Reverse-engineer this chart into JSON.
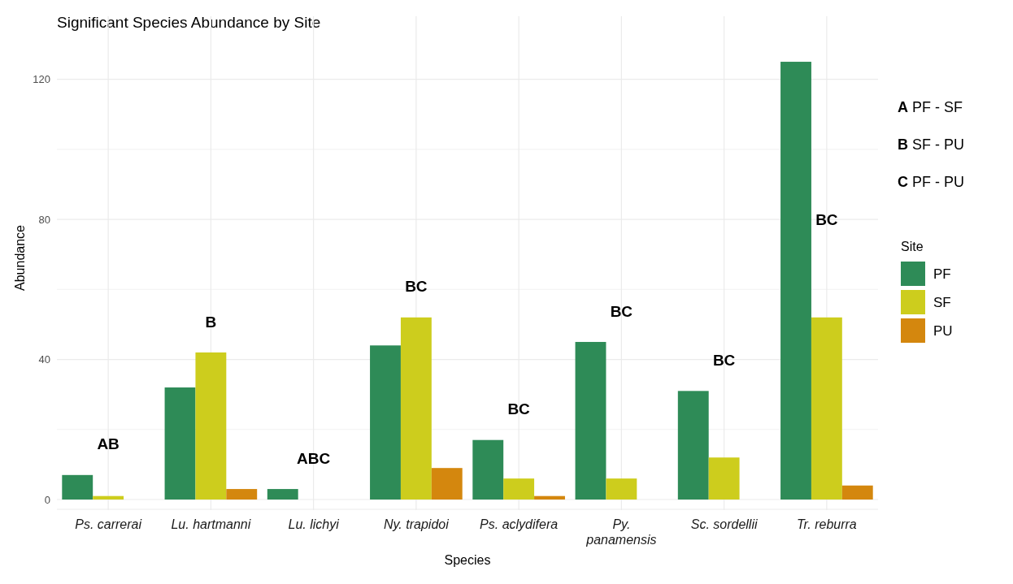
{
  "chart_data": {
    "type": "bar",
    "title": "Significant Species Abundance by Site",
    "xlabel": "Species",
    "ylabel": "Abundance",
    "legend_title": "Site",
    "legend": "right",
    "categories": [
      "Ps. carrerai",
      "Lu. hartmanni",
      "Lu. lichyi",
      "Ny. trapidoi",
      "Ps. aclydifera",
      "Py.\npanamensis",
      "Sc. sordellii",
      "Tr. reburra"
    ],
    "series": [
      {
        "name": "PF",
        "color": "#2e8b57",
        "values": [
          7,
          32,
          3,
          44,
          17,
          45,
          31,
          125
        ]
      },
      {
        "name": "SF",
        "color": "#cdcd1d",
        "values": [
          1,
          42,
          0,
          52,
          6,
          6,
          12,
          52
        ]
      },
      {
        "name": "PU",
        "color": "#d4870e",
        "values": [
          0,
          3,
          0,
          9,
          1,
          0,
          0,
          4
        ]
      }
    ],
    "ylim": [
      0,
      138
    ],
    "yticks": [
      0,
      {
        "value": 20,
        "label": null
      },
      40,
      {
        "value": 60,
        "label": null
      },
      80,
      {
        "value": 100,
        "label": null
      },
      120
    ],
    "grid": true,
    "annotations": [
      "AB",
      "B",
      "ABC",
      "BC",
      "BC",
      "BC",
      "BC",
      "BC",
      "A  PF  - SF",
      "B  SF - PU",
      "C  PF - PU"
    ]
  }
}
